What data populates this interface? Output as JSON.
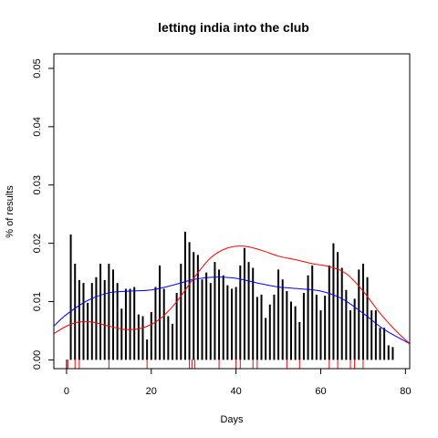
{
  "chart_data": {
    "type": "bar",
    "title": "letting india into the club",
    "xlabel": "Days",
    "ylabel": "% of results",
    "xlim": [
      -3,
      81
    ],
    "ylim": [
      -0.0015,
      0.0525
    ],
    "x_ticks": [
      0,
      20,
      40,
      60,
      80
    ],
    "y_ticks": [
      0.0,
      0.01,
      0.02,
      0.03,
      0.04,
      0.05
    ],
    "y_tick_labels": [
      "0.00",
      "0.01",
      "0.02",
      "0.03",
      "0.04",
      "0.05"
    ],
    "grid": false,
    "bar_color": "#000000",
    "days": [
      1,
      2,
      3,
      4,
      5,
      6,
      7,
      8,
      9,
      10,
      11,
      12,
      13,
      14,
      15,
      16,
      17,
      18,
      19,
      20,
      21,
      22,
      23,
      24,
      25,
      26,
      27,
      28,
      29,
      30,
      31,
      32,
      33,
      34,
      35,
      36,
      37,
      38,
      39,
      40,
      41,
      42,
      43,
      44,
      45,
      46,
      47,
      48,
      49,
      50,
      51,
      52,
      53,
      54,
      55,
      56,
      57,
      58,
      59,
      60,
      61,
      62,
      63,
      64,
      65,
      66,
      67,
      68,
      69,
      70,
      71,
      72,
      73,
      74,
      75,
      76,
      77
    ],
    "values": [
      0.0215,
      0.0165,
      0.0137,
      0.0132,
      0.0098,
      0.0132,
      0.0142,
      0.0165,
      0.0137,
      0.0165,
      0.0155,
      0.0132,
      0.0088,
      0.0122,
      0.0122,
      0.0125,
      0.0078,
      0.0075,
      0.0035,
      0.0082,
      0.0125,
      0.0162,
      0.0122,
      0.0075,
      0.0062,
      0.0115,
      0.0165,
      0.022,
      0.0202,
      0.0185,
      0.018,
      0.0138,
      0.015,
      0.0132,
      0.0168,
      0.0155,
      0.0145,
      0.0128,
      0.0122,
      0.0125,
      0.0162,
      0.0192,
      0.0168,
      0.0158,
      0.0108,
      0.0112,
      0.0072,
      0.0095,
      0.0112,
      0.0155,
      0.0138,
      0.0118,
      0.01,
      0.0092,
      0.0065,
      0.0115,
      0.0145,
      0.0162,
      0.0112,
      0.0085,
      0.011,
      0.0162,
      0.02,
      0.0185,
      0.0158,
      0.012,
      0.0085,
      0.0105,
      0.0155,
      0.0165,
      0.0142,
      0.0085,
      0.0085,
      0.0055,
      0.0055,
      0.0025,
      0.0022
    ],
    "series": [
      {
        "color": "#0000ff",
        "x": [
          -3,
          0,
          5,
          10,
          15,
          20,
          25,
          30,
          35,
          40,
          45,
          50,
          55,
          60,
          65,
          70,
          75,
          81
        ],
        "y": [
          0.0058,
          0.0078,
          0.0102,
          0.0115,
          0.0118,
          0.012,
          0.0128,
          0.0138,
          0.0142,
          0.014,
          0.0132,
          0.0125,
          0.0122,
          0.0118,
          0.0105,
          0.008,
          0.0052,
          0.0028
        ]
      },
      {
        "color": "#ff0000",
        "x": [
          -3,
          0,
          3,
          6,
          10,
          14,
          18,
          22,
          26,
          30,
          34,
          38,
          42,
          46,
          50,
          54,
          58,
          62,
          66,
          70,
          74,
          78,
          81
        ],
        "y": [
          0.0045,
          0.0058,
          0.0065,
          0.0065,
          0.0058,
          0.0052,
          0.0055,
          0.007,
          0.01,
          0.014,
          0.0175,
          0.0192,
          0.0195,
          0.0188,
          0.0178,
          0.0172,
          0.0165,
          0.016,
          0.0148,
          0.0118,
          0.008,
          0.0048,
          0.0028
        ]
      }
    ],
    "rug": [
      {
        "x": 0,
        "color": "#000000"
      },
      {
        "x": 0.3,
        "color": "#ff0000"
      },
      {
        "x": 2,
        "color": "#ff0000"
      },
      {
        "x": 3,
        "color": "#ff0000"
      },
      {
        "x": 10,
        "color": "#ff0000"
      },
      {
        "x": 19,
        "color": "#ff0000"
      },
      {
        "x": 29,
        "color": "#ff0000"
      },
      {
        "x": 29.6,
        "color": "#ff0000"
      },
      {
        "x": 30.3,
        "color": "#ff0000"
      },
      {
        "x": 36,
        "color": "#ff0000"
      },
      {
        "x": 40,
        "color": "#ff0000"
      },
      {
        "x": 41,
        "color": "#ff0000"
      },
      {
        "x": 44,
        "color": "#ff0000"
      },
      {
        "x": 45,
        "color": "#ff0000"
      },
      {
        "x": 52,
        "color": "#ff0000"
      },
      {
        "x": 55,
        "color": "#ff0000"
      },
      {
        "x": 62,
        "color": "#ff0000"
      },
      {
        "x": 64,
        "color": "#ff0000"
      },
      {
        "x": 67,
        "color": "#ff0000"
      },
      {
        "x": 68,
        "color": "#ff0000"
      },
      {
        "x": 70,
        "color": "#ff0000"
      }
    ]
  }
}
